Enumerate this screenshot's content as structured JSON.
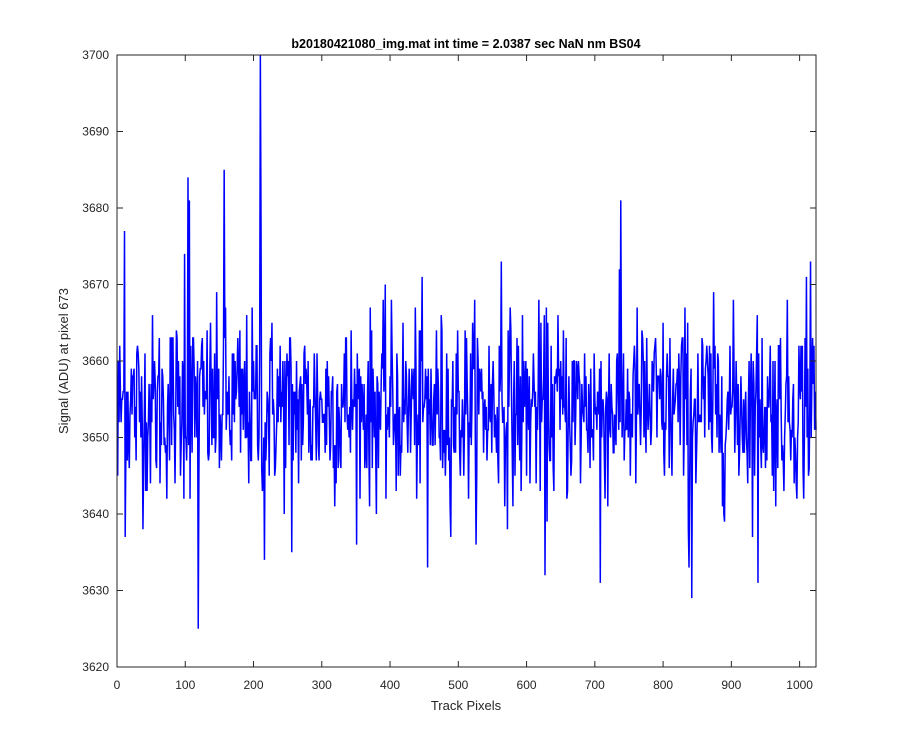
{
  "colors": {
    "line": "#0000ff",
    "axis": "#262626",
    "background": "#ffffff"
  },
  "chart_data": {
    "type": "line",
    "title": "b20180421080_img.mat int time = 2.0387 sec  NaN nm BS04",
    "xlabel": "Track Pixels",
    "ylabel": "Signal (ADU) at pixel 673",
    "xlim": [
      0,
      1024
    ],
    "ylim": [
      3620,
      3700
    ],
    "xticks": [
      0,
      100,
      200,
      300,
      400,
      500,
      600,
      700,
      800,
      900,
      1000
    ],
    "yticks": [
      3620,
      3630,
      3640,
      3650,
      3660,
      3670,
      3680,
      3690,
      3700
    ],
    "grid": false,
    "legend": "none",
    "series": [
      {
        "color": "#0000ff",
        "point_count": 1024,
        "baseline": 3654,
        "noise_sd": 6,
        "notable_points": [
          {
            "x": 1,
            "y": 3645
          },
          {
            "x": 11,
            "y": 3677
          },
          {
            "x": 12,
            "y": 3637
          },
          {
            "x": 99,
            "y": 3674
          },
          {
            "x": 104,
            "y": 3684
          },
          {
            "x": 106,
            "y": 3681
          },
          {
            "x": 119,
            "y": 3625
          },
          {
            "x": 157,
            "y": 3685
          },
          {
            "x": 210,
            "y": 3700
          },
          {
            "x": 211,
            "y": 3678
          },
          {
            "x": 216,
            "y": 3634
          },
          {
            "x": 256,
            "y": 3635
          },
          {
            "x": 455,
            "y": 3633
          },
          {
            "x": 563,
            "y": 3673
          },
          {
            "x": 627,
            "y": 3632
          },
          {
            "x": 708,
            "y": 3631
          },
          {
            "x": 738,
            "y": 3681
          },
          {
            "x": 838,
            "y": 3633
          },
          {
            "x": 842,
            "y": 3629
          },
          {
            "x": 939,
            "y": 3631
          },
          {
            "x": 1010,
            "y": 3671
          },
          {
            "x": 1016,
            "y": 3673
          }
        ]
      }
    ]
  }
}
